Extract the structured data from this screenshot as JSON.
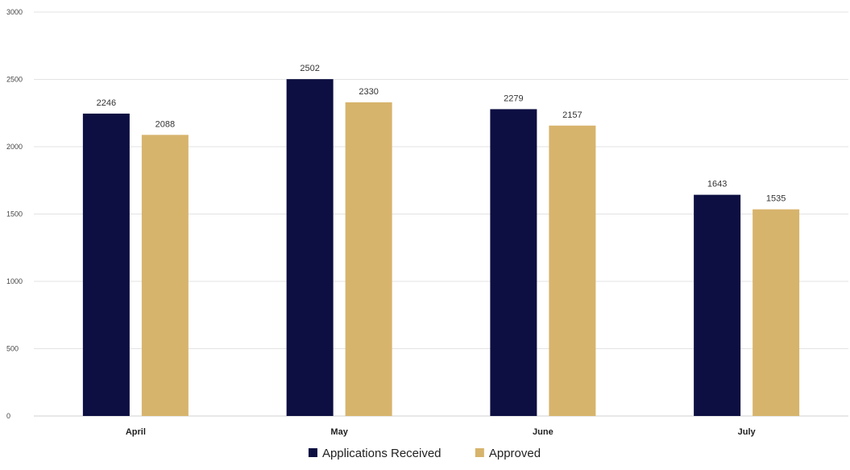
{
  "chart_data": {
    "type": "bar",
    "title": "",
    "xlabel": "",
    "ylabel": "",
    "categories": [
      "April",
      "May",
      "June",
      "July"
    ],
    "series": [
      {
        "name": "Applications Received",
        "color": "#0d0f42",
        "values": [
          2246,
          2502,
          2279,
          1643
        ]
      },
      {
        "name": "Approved",
        "color": "#d7b46c",
        "values": [
          2088,
          2330,
          2157,
          1535
        ]
      }
    ],
    "ylim": [
      0,
      3000
    ],
    "yticks": [
      "0",
      "500",
      "1000",
      "1500",
      "2000",
      "2500",
      "3000"
    ],
    "grid": true,
    "legend_position": "bottom-center"
  }
}
